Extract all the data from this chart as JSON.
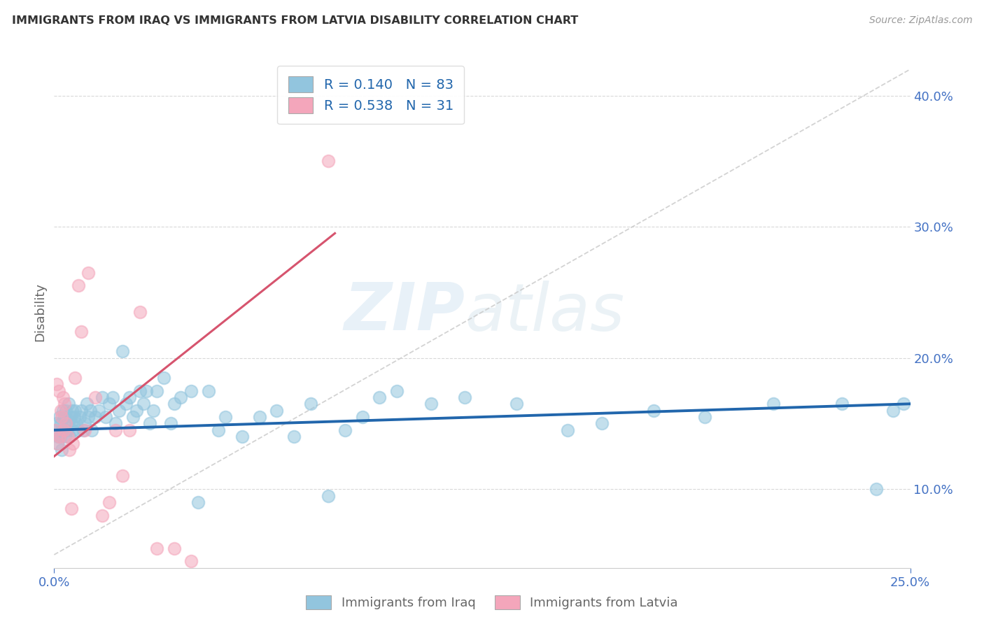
{
  "title": "IMMIGRANTS FROM IRAQ VS IMMIGRANTS FROM LATVIA DISABILITY CORRELATION CHART",
  "source": "Source: ZipAtlas.com",
  "ylabel": "Disability",
  "xlim": [
    0.0,
    25.0
  ],
  "ylim": [
    4.0,
    43.0
  ],
  "y_ticks": [
    10.0,
    20.0,
    30.0,
    40.0
  ],
  "x_ticks": [
    0.0,
    25.0
  ],
  "legend_iraq_r": "0.140",
  "legend_iraq_n": "83",
  "legend_latvia_r": "0.538",
  "legend_latvia_n": "31",
  "blue_scatter_color": "#92c5de",
  "pink_scatter_color": "#f4a6bb",
  "blue_line_color": "#2166ac",
  "pink_line_color": "#d6546e",
  "dashed_line_color": "#c8c8c8",
  "legend_text_r_color": "#2166ac",
  "legend_text_n_color": "#d04040",
  "iraq_x": [
    0.05,
    0.08,
    0.1,
    0.12,
    0.15,
    0.18,
    0.2,
    0.22,
    0.25,
    0.28,
    0.3,
    0.32,
    0.35,
    0.38,
    0.4,
    0.42,
    0.45,
    0.48,
    0.5,
    0.52,
    0.55,
    0.58,
    0.6,
    0.65,
    0.7,
    0.75,
    0.8,
    0.85,
    0.9,
    0.95,
    1.0,
    1.05,
    1.1,
    1.2,
    1.3,
    1.4,
    1.5,
    1.6,
    1.7,
    1.8,
    1.9,
    2.0,
    2.1,
    2.2,
    2.3,
    2.4,
    2.5,
    2.6,
    2.7,
    2.8,
    2.9,
    3.0,
    3.2,
    3.4,
    3.5,
    3.7,
    4.0,
    4.2,
    4.5,
    4.8,
    5.0,
    5.5,
    6.0,
    6.5,
    7.0,
    7.5,
    8.0,
    8.5,
    9.0,
    9.5,
    10.0,
    11.0,
    12.0,
    13.5,
    15.0,
    16.0,
    17.5,
    19.0,
    21.0,
    23.0,
    24.0,
    24.5,
    24.8
  ],
  "iraq_y": [
    14.5,
    15.0,
    13.5,
    14.0,
    15.5,
    14.0,
    15.0,
    13.0,
    16.0,
    14.5,
    15.5,
    14.0,
    16.0,
    14.5,
    15.0,
    16.5,
    14.0,
    15.5,
    15.0,
    16.0,
    14.5,
    15.5,
    16.0,
    15.0,
    14.5,
    15.5,
    16.0,
    14.5,
    15.0,
    16.5,
    15.5,
    16.0,
    14.5,
    15.5,
    16.0,
    17.0,
    15.5,
    16.5,
    17.0,
    15.0,
    16.0,
    20.5,
    16.5,
    17.0,
    15.5,
    16.0,
    17.5,
    16.5,
    17.5,
    15.0,
    16.0,
    17.5,
    18.5,
    15.0,
    16.5,
    17.0,
    17.5,
    9.0,
    17.5,
    14.5,
    15.5,
    14.0,
    15.5,
    16.0,
    14.0,
    16.5,
    9.5,
    14.5,
    15.5,
    17.0,
    17.5,
    16.5,
    17.0,
    16.5,
    14.5,
    15.0,
    16.0,
    15.5,
    16.5,
    16.5,
    10.0,
    16.0,
    16.5
  ],
  "latvia_x": [
    0.04,
    0.07,
    0.1,
    0.13,
    0.16,
    0.19,
    0.22,
    0.25,
    0.28,
    0.31,
    0.35,
    0.4,
    0.45,
    0.5,
    0.55,
    0.6,
    0.7,
    0.8,
    0.9,
    1.0,
    1.2,
    1.4,
    1.6,
    1.8,
    2.0,
    2.2,
    2.5,
    3.0,
    3.5,
    4.0,
    8.0
  ],
  "latvia_y": [
    14.5,
    18.0,
    13.5,
    17.5,
    14.0,
    16.0,
    15.5,
    17.0,
    14.5,
    16.5,
    15.0,
    14.0,
    13.0,
    8.5,
    13.5,
    18.5,
    25.5,
    22.0,
    14.5,
    26.5,
    17.0,
    8.0,
    9.0,
    14.5,
    11.0,
    14.5,
    23.5,
    5.5,
    5.5,
    4.5,
    35.0
  ],
  "iraq_line_x": [
    0.0,
    25.0
  ],
  "iraq_line_y": [
    14.5,
    16.5
  ],
  "latvia_line_x": [
    0.0,
    8.2
  ],
  "latvia_line_y": [
    12.5,
    29.5
  ],
  "diag_line_x": [
    0.0,
    25.0
  ],
  "diag_line_y": [
    5.0,
    42.0
  ],
  "watermark": "ZIPatlas",
  "watermark_zip": "ZIP",
  "watermark_atlas": "atlas"
}
